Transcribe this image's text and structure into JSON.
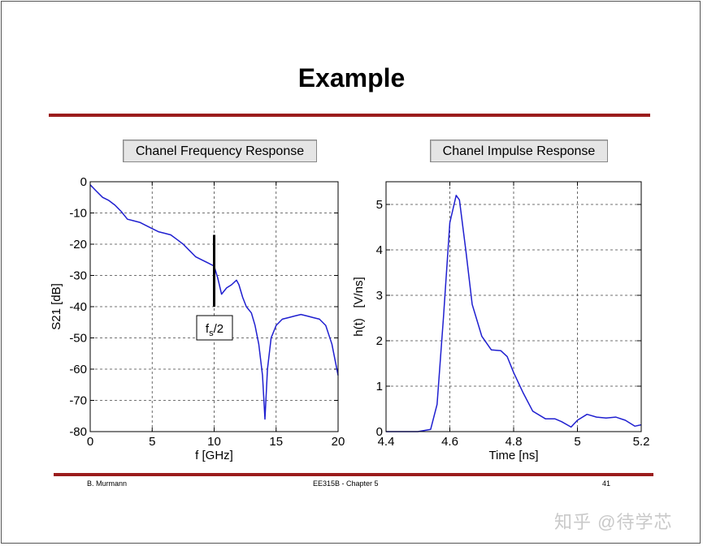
{
  "slide": {
    "title": "Example",
    "footer_left": "B. Murmann",
    "footer_center": "EE315B - Chapter 5",
    "footer_right": "41",
    "watermark": "知乎 @待学芯"
  },
  "colors": {
    "rule": "#9b1c1c",
    "trace": "#1f1fd0"
  },
  "chart_data": [
    {
      "type": "line",
      "title": "Chanel Frequency Response",
      "xlabel": "f [GHz]",
      "ylabel": "S21 [dB]",
      "xlim": [
        0,
        20
      ],
      "ylim": [
        -80,
        0
      ],
      "xticks": [
        0,
        5,
        10,
        15,
        20
      ],
      "yticks": [
        0,
        -10,
        -20,
        -30,
        -40,
        -50,
        -60,
        -70,
        -80
      ],
      "grid": true,
      "annotation": {
        "text_main": "f",
        "text_sub": "s",
        "text_tail": "/2",
        "marker_x": 10,
        "marker_y_range": [
          -17,
          -40
        ]
      },
      "series": [
        {
          "x": [
            0,
            0.5,
            1,
            1.5,
            2,
            2.5,
            3,
            3.5,
            4,
            4.5,
            5,
            5.5,
            6,
            6.5,
            7,
            7.5,
            8,
            8.5,
            9,
            9.5,
            10,
            10.3,
            10.6,
            11,
            11.4,
            11.8,
            12,
            12.3,
            12.6,
            13,
            13.3,
            13.6,
            13.9,
            14.1,
            14.3,
            14.6,
            15,
            15.5,
            16,
            16.5,
            17,
            17.5,
            18,
            18.5,
            19,
            19.5,
            20
          ],
          "y": [
            -1,
            -3,
            -5,
            -6,
            -7.5,
            -9.5,
            -12,
            -12.5,
            -13,
            -14,
            -15,
            -16,
            -16.5,
            -17,
            -18.5,
            -20,
            -22,
            -24,
            -25,
            -26,
            -27,
            -31,
            -36,
            -34,
            -33,
            -31.5,
            -33,
            -37,
            -40,
            -42,
            -46,
            -52,
            -62,
            -76,
            -60,
            -50,
            -46,
            -44,
            -43.5,
            -43,
            -42.5,
            -43,
            -43.5,
            -44,
            -46,
            -52,
            -62
          ]
        }
      ]
    },
    {
      "type": "line",
      "title": "Chanel Impulse Response",
      "xlabel": "Time [ns]",
      "ylabel": "h(t)   [V/ns]",
      "xlim": [
        4.4,
        5.2
      ],
      "ylim": [
        0,
        5.5
      ],
      "xticks": [
        4.4,
        4.6,
        4.8,
        5,
        5.2
      ],
      "yticks": [
        0,
        1,
        2,
        3,
        4,
        5
      ],
      "grid": true,
      "series": [
        {
          "x": [
            4.4,
            4.5,
            4.54,
            4.56,
            4.58,
            4.6,
            4.62,
            4.63,
            4.65,
            4.67,
            4.7,
            4.73,
            4.76,
            4.78,
            4.8,
            4.83,
            4.86,
            4.9,
            4.93,
            4.95,
            4.98,
            5.0,
            5.03,
            5.06,
            5.09,
            5.12,
            5.15,
            5.18,
            5.2
          ],
          "y": [
            0.0,
            0.0,
            0.05,
            0.6,
            2.5,
            4.6,
            5.2,
            5.1,
            4.0,
            2.8,
            2.1,
            1.8,
            1.78,
            1.65,
            1.3,
            0.85,
            0.45,
            0.28,
            0.28,
            0.22,
            0.1,
            0.25,
            0.38,
            0.32,
            0.3,
            0.32,
            0.25,
            0.12,
            0.15
          ]
        }
      ]
    }
  ]
}
